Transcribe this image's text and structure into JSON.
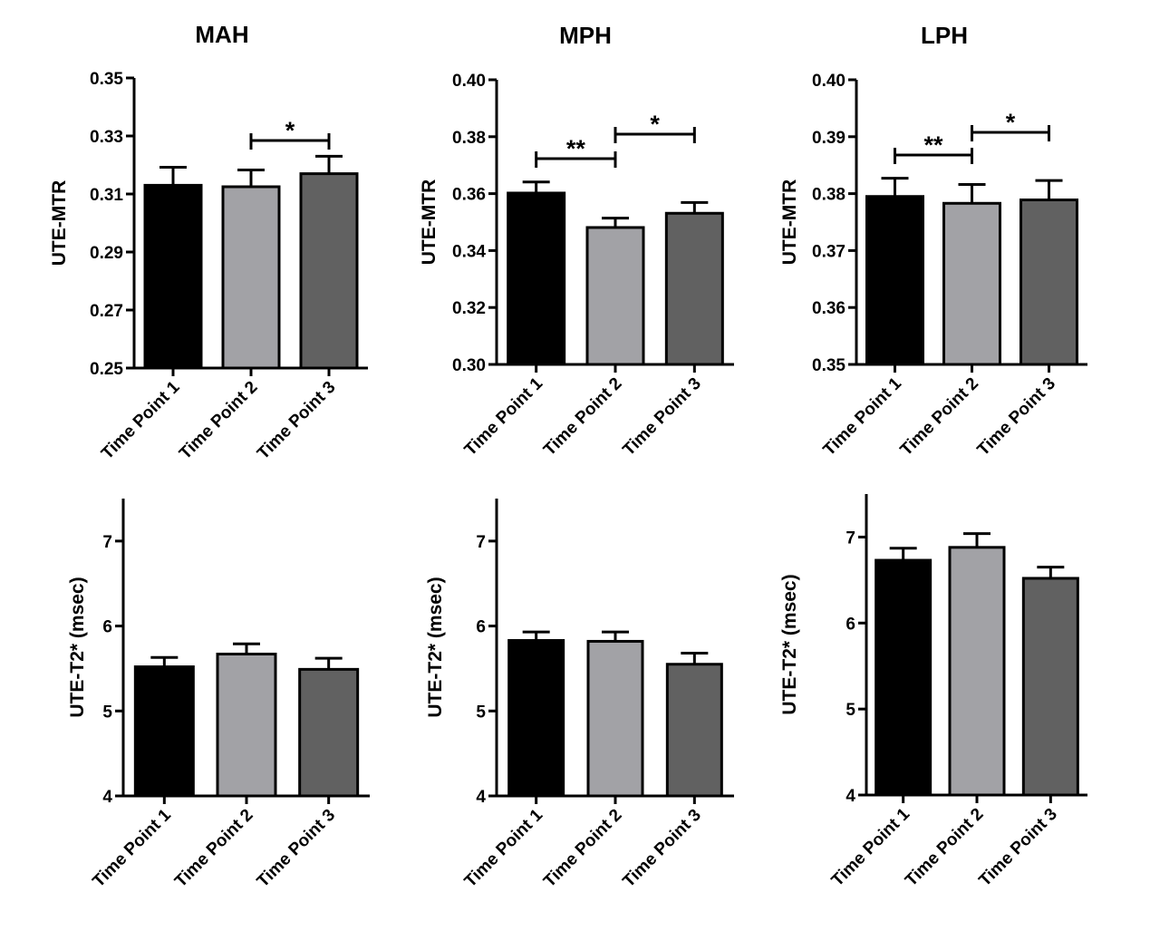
{
  "colors": {
    "tp1": "#000000",
    "tp2": "#a2a2a6",
    "tp3": "#616161"
  },
  "chart_data": [
    {
      "type": "bar",
      "title": "MAH",
      "ylabel": "UTE-MTR",
      "categories": [
        "Time Point 1",
        "Time Point 2",
        "Time Point 3"
      ],
      "values": [
        0.313,
        0.3125,
        0.317
      ],
      "errors": [
        0.0062,
        0.0058,
        0.006
      ],
      "ylim": [
        0.25,
        0.35
      ],
      "yticks": [
        "0.25",
        "0.27",
        "0.29",
        "0.31",
        "0.33",
        "0.35"
      ],
      "significance": [
        {
          "from": 1,
          "to": 2,
          "label": "*"
        }
      ]
    },
    {
      "type": "bar",
      "title": "MPH",
      "ylabel": "UTE-MTR",
      "categories": [
        "Time Point 1",
        "Time Point 2",
        "Time Point 3"
      ],
      "values": [
        0.3602,
        0.3481,
        0.3531
      ],
      "errors": [
        0.0039,
        0.0033,
        0.0038
      ],
      "ylim": [
        0.3,
        0.4
      ],
      "yticks": [
        "0.30",
        "0.32",
        "0.34",
        "0.36",
        "0.38",
        "0.40"
      ],
      "significance": [
        {
          "from": 0,
          "to": 1,
          "label": "**"
        },
        {
          "from": 1,
          "to": 2,
          "label": "*"
        }
      ]
    },
    {
      "type": "bar",
      "title": "LPH",
      "ylabel": "UTE-MTR",
      "categories": [
        "Time Point 1",
        "Time Point 2",
        "Time Point 3"
      ],
      "values": [
        0.3795,
        0.3783,
        0.3789
      ],
      "errors": [
        0.0032,
        0.0033,
        0.0034
      ],
      "ylim": [
        0.35,
        0.4
      ],
      "yticks": [
        "0.35",
        "0.36",
        "0.37",
        "0.38",
        "0.39",
        "0.40"
      ],
      "significance": [
        {
          "from": 0,
          "to": 1,
          "label": "**"
        },
        {
          "from": 1,
          "to": 2,
          "label": "*"
        }
      ]
    },
    {
      "type": "bar",
      "title": "",
      "ylabel": "UTE-T2* (msec)",
      "categories": [
        "Time Point 1",
        "Time Point 2",
        "Time Point 3"
      ],
      "values": [
        5.52,
        5.67,
        5.49
      ],
      "errors": [
        0.11,
        0.12,
        0.13
      ],
      "ylim": [
        4,
        7.5
      ],
      "yticks": [
        "4",
        "5",
        "6",
        "7"
      ],
      "significance": []
    },
    {
      "type": "bar",
      "title": "",
      "ylabel": "UTE-T2* (msec)",
      "categories": [
        "Time Point 1",
        "Time Point 2",
        "Time Point 3"
      ],
      "values": [
        5.83,
        5.82,
        5.55
      ],
      "errors": [
        0.1,
        0.11,
        0.13
      ],
      "ylim": [
        4,
        7.5
      ],
      "yticks": [
        "4",
        "5",
        "6",
        "7"
      ],
      "significance": []
    },
    {
      "type": "bar",
      "title": "",
      "ylabel": "UTE-T2* (msec)",
      "categories": [
        "Time Point 1",
        "Time Point 2",
        "Time Point 3"
      ],
      "values": [
        6.73,
        6.88,
        6.52
      ],
      "errors": [
        0.14,
        0.16,
        0.13
      ],
      "ylim": [
        4,
        7.5
      ],
      "yticks": [
        "4",
        "5",
        "6",
        "7"
      ],
      "significance": []
    }
  ]
}
